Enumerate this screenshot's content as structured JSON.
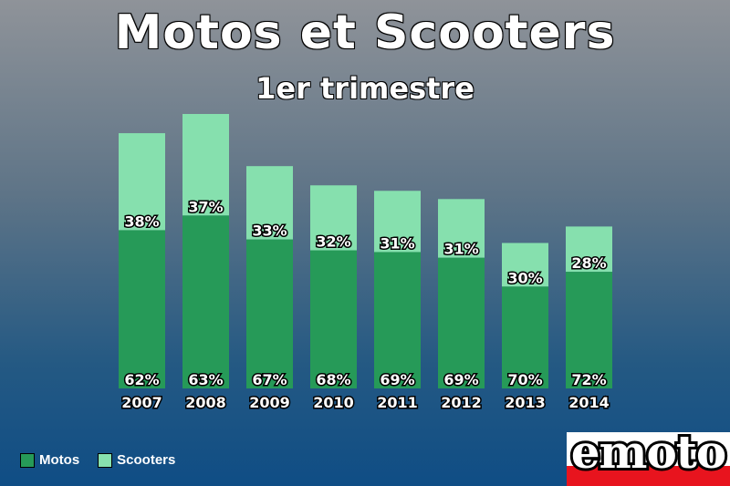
{
  "title": "Motos et Scooters",
  "subtitle": "1er trimestre",
  "logo_text": "emoto",
  "colors": {
    "motos": "#269a58",
    "scooters": "#86e0ae",
    "logo_red": "#e8141e"
  },
  "chart_data": {
    "type": "bar",
    "stacked": true,
    "title": "Motos et Scooters",
    "subtitle": "1er trimestre",
    "categories": [
      "2007",
      "2008",
      "2009",
      "2010",
      "2011",
      "2012",
      "2013",
      "2014"
    ],
    "series": [
      {
        "name": "Motos",
        "color": "#269a58",
        "values": [
          62,
          63,
          67,
          68,
          69,
          69,
          70,
          72
        ],
        "labels": [
          "62%",
          "63%",
          "67%",
          "68%",
          "69%",
          "69%",
          "70%",
          "72%"
        ]
      },
      {
        "name": "Scooters",
        "color": "#86e0ae",
        "values": [
          38,
          37,
          33,
          32,
          31,
          31,
          30,
          28
        ],
        "labels": [
          "38%",
          "37%",
          "33%",
          "32%",
          "31%",
          "31%",
          "30%",
          "28%"
        ]
      }
    ],
    "totals_relative": [
      0.93,
      1.0,
      0.81,
      0.74,
      0.72,
      0.69,
      0.53,
      0.59
    ],
    "legend_position": "bottom-left",
    "grid": false
  }
}
